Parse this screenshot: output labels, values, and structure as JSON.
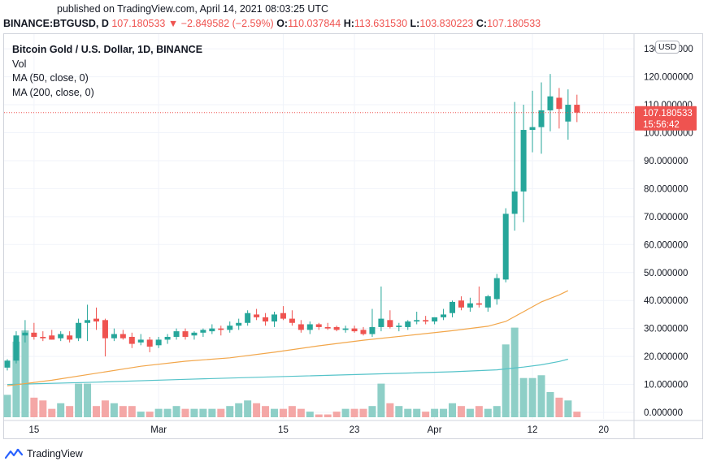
{
  "published": "published on TradingView.com, April 14, 2021 08:03:25 UTC",
  "header": {
    "symbol": "BINANCE:BTGUSD, D",
    "last": "107.180533",
    "arrow": "▼",
    "change": "−2.849582 (−2.59%)",
    "o_label": "O:",
    "o": "110.037844",
    "h_label": "H:",
    "h": "113.631530",
    "l_label": "L:",
    "l": "103.830223",
    "c_label": "C:",
    "c": "107.180533"
  },
  "legend": {
    "title": "Bitcoin Gold / U.S. Dollar, 1D, BINANCE",
    "vol": "Vol",
    "ma50": "MA (50, close, 0)",
    "ma200": "MA (200, close, 0)"
  },
  "currency_badge": "USD",
  "price_tag": {
    "value": "107.180533",
    "countdown": "15:56:42"
  },
  "footer": {
    "brand": "TradingView"
  },
  "colors": {
    "up": "#26a69a",
    "down": "#ef5350",
    "up_vol": "#8ecfc7",
    "down_vol": "#f4a7a6",
    "ma50": "#f2a64a",
    "ma200": "#55c3c9",
    "grid": "#f0f3fa",
    "axis_text": "#131722"
  },
  "chart_data": {
    "type": "candlestick",
    "title": "Bitcoin Gold / U.S. Dollar, 1D, BINANCE",
    "y_ticks": [
      "0.000000",
      "10.000000",
      "20.000000",
      "30.000000",
      "40.000000",
      "50.000000",
      "60.000000",
      "70.000000",
      "80.000000",
      "90.000000",
      "100.000000",
      "110.000000",
      "120.000000",
      "130.000000"
    ],
    "ylim": [
      -1,
      133
    ],
    "x_ticks": [
      {
        "label": "15",
        "index": 3
      },
      {
        "label": "Mar",
        "index": 17
      },
      {
        "label": "15",
        "index": 31
      },
      {
        "label": "23",
        "index": 39
      },
      {
        "label": "Apr",
        "index": 48
      },
      {
        "label": "12",
        "index": 59
      },
      {
        "label": "20",
        "index": 67
      }
    ],
    "x_range": [
      0,
      72
    ],
    "candles": [
      {
        "o": 16.0,
        "h": 19.0,
        "l": 15.0,
        "c": 18.5
      },
      {
        "o": 18.5,
        "h": 29.0,
        "l": 17.5,
        "c": 27.5
      },
      {
        "o": 27.5,
        "h": 33.0,
        "l": 25.0,
        "c": 28.5
      },
      {
        "o": 28.5,
        "h": 32.0,
        "l": 26.0,
        "c": 27.0
      },
      {
        "o": 27.0,
        "h": 29.0,
        "l": 25.5,
        "c": 26.5
      },
      {
        "o": 27.5,
        "h": 29.5,
        "l": 26.0,
        "c": 26.0
      },
      {
        "o": 26.5,
        "h": 29.0,
        "l": 25.5,
        "c": 28.0
      },
      {
        "o": 27.5,
        "h": 29.0,
        "l": 25.0,
        "c": 26.0
      },
      {
        "o": 26.5,
        "h": 33.5,
        "l": 25.5,
        "c": 32.0
      },
      {
        "o": 32.0,
        "h": 38.5,
        "l": 25.5,
        "c": 33.0
      },
      {
        "o": 33.5,
        "h": 37.5,
        "l": 29.5,
        "c": 32.5
      },
      {
        "o": 33.0,
        "h": 33.5,
        "l": 20.0,
        "c": 26.5
      },
      {
        "o": 26.5,
        "h": 30.0,
        "l": 25.5,
        "c": 28.0
      },
      {
        "o": 28.0,
        "h": 29.5,
        "l": 26.0,
        "c": 26.5
      },
      {
        "o": 27.0,
        "h": 28.5,
        "l": 23.0,
        "c": 24.5
      },
      {
        "o": 25.0,
        "h": 28.0,
        "l": 24.0,
        "c": 26.0
      },
      {
        "o": 26.0,
        "h": 27.0,
        "l": 21.5,
        "c": 23.5
      },
      {
        "o": 24.0,
        "h": 27.0,
        "l": 23.0,
        "c": 26.0
      },
      {
        "o": 26.0,
        "h": 28.0,
        "l": 24.5,
        "c": 27.0
      },
      {
        "o": 27.0,
        "h": 30.0,
        "l": 26.0,
        "c": 29.0
      },
      {
        "o": 29.0,
        "h": 30.0,
        "l": 26.0,
        "c": 27.0
      },
      {
        "o": 27.5,
        "h": 29.0,
        "l": 26.0,
        "c": 28.5
      },
      {
        "o": 28.5,
        "h": 30.0,
        "l": 27.0,
        "c": 29.5
      },
      {
        "o": 29.0,
        "h": 31.5,
        "l": 28.0,
        "c": 30.0
      },
      {
        "o": 30.0,
        "h": 31.0,
        "l": 27.5,
        "c": 29.5
      },
      {
        "o": 29.5,
        "h": 32.5,
        "l": 28.5,
        "c": 31.0
      },
      {
        "o": 31.0,
        "h": 33.5,
        "l": 29.5,
        "c": 32.0
      },
      {
        "o": 32.0,
        "h": 36.5,
        "l": 31.0,
        "c": 35.5
      },
      {
        "o": 35.0,
        "h": 37.0,
        "l": 33.0,
        "c": 34.0
      },
      {
        "o": 34.0,
        "h": 35.5,
        "l": 31.0,
        "c": 32.5
      },
      {
        "o": 32.5,
        "h": 36.0,
        "l": 30.5,
        "c": 35.0
      },
      {
        "o": 35.5,
        "h": 38.0,
        "l": 33.0,
        "c": 33.5
      },
      {
        "o": 33.5,
        "h": 36.5,
        "l": 31.0,
        "c": 32.0
      },
      {
        "o": 31.5,
        "h": 33.0,
        "l": 28.5,
        "c": 29.5
      },
      {
        "o": 29.5,
        "h": 32.5,
        "l": 28.0,
        "c": 31.5
      },
      {
        "o": 31.5,
        "h": 32.0,
        "l": 29.5,
        "c": 30.5
      },
      {
        "o": 30.5,
        "h": 32.0,
        "l": 29.5,
        "c": 30.0
      },
      {
        "o": 30.5,
        "h": 31.0,
        "l": 29.0,
        "c": 29.5
      },
      {
        "o": 29.5,
        "h": 31.0,
        "l": 28.5,
        "c": 30.0
      },
      {
        "o": 30.0,
        "h": 31.0,
        "l": 28.5,
        "c": 29.0
      },
      {
        "o": 29.5,
        "h": 30.5,
        "l": 27.5,
        "c": 28.0
      },
      {
        "o": 28.0,
        "h": 37.0,
        "l": 27.0,
        "c": 30.5
      },
      {
        "o": 30.5,
        "h": 45.0,
        "l": 29.0,
        "c": 33.5
      },
      {
        "o": 33.0,
        "h": 36.5,
        "l": 30.0,
        "c": 30.5
      },
      {
        "o": 30.5,
        "h": 32.0,
        "l": 29.0,
        "c": 31.0
      },
      {
        "o": 30.5,
        "h": 33.0,
        "l": 29.5,
        "c": 32.5
      },
      {
        "o": 32.5,
        "h": 36.0,
        "l": 31.5,
        "c": 33.0
      },
      {
        "o": 33.0,
        "h": 34.5,
        "l": 31.5,
        "c": 32.5
      },
      {
        "o": 32.5,
        "h": 34.0,
        "l": 31.5,
        "c": 34.0
      },
      {
        "o": 34.0,
        "h": 37.0,
        "l": 33.0,
        "c": 35.0
      },
      {
        "o": 35.5,
        "h": 40.0,
        "l": 34.0,
        "c": 39.5
      },
      {
        "o": 40.0,
        "h": 41.5,
        "l": 36.5,
        "c": 37.5
      },
      {
        "o": 37.5,
        "h": 41.0,
        "l": 36.0,
        "c": 39.0
      },
      {
        "o": 39.0,
        "h": 45.0,
        "l": 37.5,
        "c": 38.5
      },
      {
        "o": 37.5,
        "h": 42.0,
        "l": 36.0,
        "c": 41.5
      },
      {
        "o": 40.5,
        "h": 49.5,
        "l": 38.5,
        "c": 48.0
      },
      {
        "o": 47.5,
        "h": 73.0,
        "l": 46.5,
        "c": 71.0
      },
      {
        "o": 71.0,
        "h": 111.0,
        "l": 65.0,
        "c": 79.0
      },
      {
        "o": 79.0,
        "h": 110.0,
        "l": 68.0,
        "c": 101.0
      },
      {
        "o": 101.0,
        "h": 115.0,
        "l": 93.0,
        "c": 102.0
      },
      {
        "o": 102.0,
        "h": 118.0,
        "l": 92.5,
        "c": 108.0
      },
      {
        "o": 108.0,
        "h": 121.0,
        "l": 100.5,
        "c": 113.0
      },
      {
        "o": 112.5,
        "h": 116.0,
        "l": 101.5,
        "c": 108.5
      },
      {
        "o": 104.0,
        "h": 115.5,
        "l": 97.5,
        "c": 110.0
      },
      {
        "o": 110.0,
        "h": 113.6,
        "l": 103.8,
        "c": 107.2
      }
    ],
    "volume": [
      8,
      27,
      31,
      7,
      6,
      3,
      5,
      4,
      12,
      12,
      4,
      6,
      5,
      4,
      4,
      2,
      2,
      3,
      3,
      4,
      3,
      3,
      3,
      3,
      3,
      4,
      5,
      6,
      5,
      4,
      3,
      3,
      4,
      3,
      2,
      1,
      1,
      2,
      3,
      3,
      3,
      4,
      12,
      5,
      4,
      3,
      3,
      2,
      3,
      3,
      5,
      4,
      3,
      4,
      3,
      4,
      26,
      32,
      14,
      14,
      15,
      9,
      7,
      6,
      2
    ],
    "ma50": [
      [
        0,
        9.5
      ],
      [
        5,
        11.5
      ],
      [
        10,
        14.0
      ],
      [
        15,
        16.5
      ],
      [
        20,
        18.3
      ],
      [
        25,
        19.5
      ],
      [
        30,
        21.5
      ],
      [
        35,
        23.8
      ],
      [
        40,
        25.8
      ],
      [
        45,
        27.5
      ],
      [
        50,
        29.2
      ],
      [
        54,
        30.8
      ],
      [
        56,
        32.5
      ],
      [
        58,
        36.0
      ],
      [
        60,
        39.5
      ],
      [
        62,
        42.0
      ],
      [
        63,
        43.5
      ]
    ],
    "ma200": [
      [
        0,
        10.0
      ],
      [
        10,
        10.8
      ],
      [
        20,
        11.8
      ],
      [
        30,
        12.7
      ],
      [
        40,
        13.6
      ],
      [
        50,
        14.5
      ],
      [
        55,
        15.2
      ],
      [
        58,
        16.2
      ],
      [
        60,
        17.0
      ],
      [
        62,
        18.2
      ],
      [
        63,
        19.0
      ]
    ]
  }
}
